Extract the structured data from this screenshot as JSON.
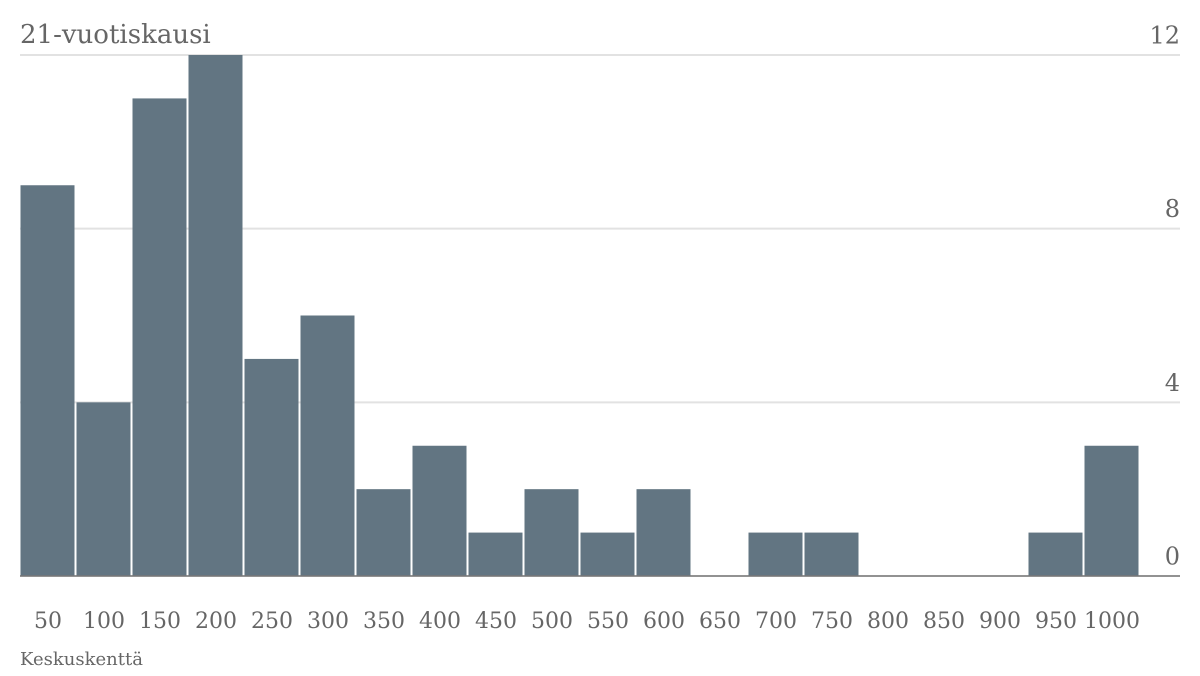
{
  "chart_data": {
    "type": "bar",
    "title": "21-vuotiskausi",
    "x_label": "Keskuskenttä",
    "categories": [
      "50",
      "100",
      "150",
      "200",
      "250",
      "300",
      "350",
      "400",
      "450",
      "500",
      "550",
      "600",
      "650",
      "700",
      "750",
      "800",
      "850",
      "900",
      "950",
      "1000"
    ],
    "values": [
      9,
      4,
      11,
      12,
      5,
      6,
      2,
      3,
      1,
      2,
      1,
      2,
      0,
      1,
      1,
      0,
      0,
      0,
      1,
      3
    ],
    "color": "#627582",
    "ylim": [
      0,
      12
    ],
    "yticks": [
      0,
      4,
      8,
      12
    ],
    "grid": true
  }
}
